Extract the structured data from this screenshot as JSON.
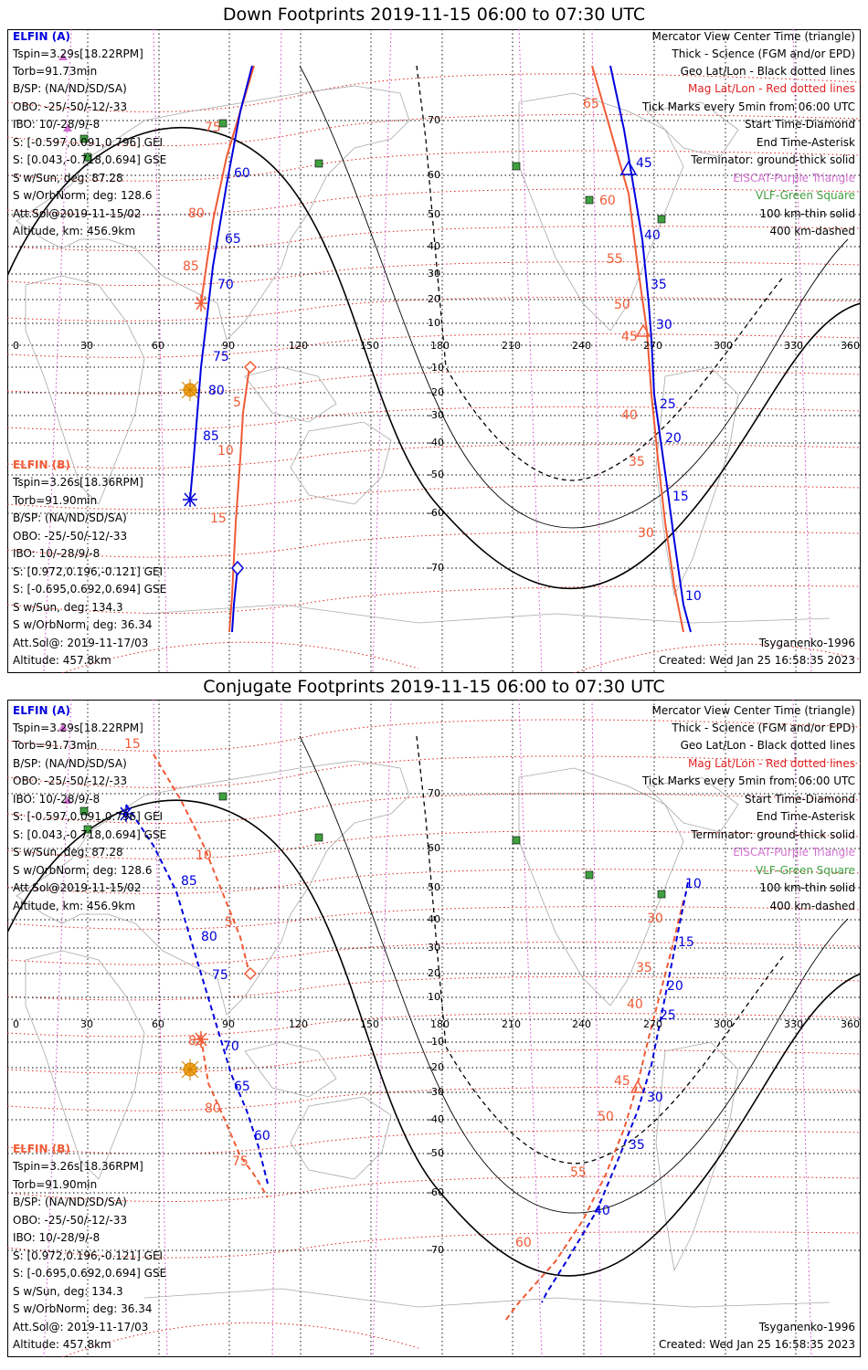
{
  "panels": [
    {
      "title": "Down Footprints 2019-11-15 06:00 to 07:30 UTC",
      "elfin_a": {
        "header": "ELFIN (A)",
        "lines": [
          "Tspin=3.29s[18.22RPM]",
          "Torb=91.73min",
          "B/SP: (NA/ND/SD/SA)",
          "OBO: -25/-50/-12/-33",
          "IBO: 10/-28/9/-8",
          "S: [-0.597,0.091,0.796] GEI",
          "S: [0.043,-0.718,0.694] GSE",
          "S w/Sun, deg: 87.28",
          "S w/OrbNorm, deg: 128.6",
          "Att.Sol@2019-11-15/02",
          "Altitude, km: 456.9km"
        ]
      },
      "elfin_b": {
        "header": "ELFIN (B)",
        "lines": [
          "Tspin=3.26s[18.36RPM]",
          "Torb=91.90min",
          "B/SP: (NA/ND/SD/SA)",
          "OBO: -25/-50/-12/-33",
          "IBO: 10/-28/9/-8",
          "S: [0.972,0.196,-0.121] GEI",
          "S: [-0.695,0.692,0.694] GSE",
          "S w/Sun, deg: 134.3",
          "S w/OrbNorm, deg: 36.34",
          "Att.Sol@: 2019-11-17/03",
          "Altitude: 457.8km"
        ]
      },
      "legend": [
        {
          "text": "Mercator View Center Time (triangle)",
          "color": "#000000"
        },
        {
          "text": "Thick - Science (FGM and/or EPD)",
          "color": "#000000"
        },
        {
          "text": "Geo Lat/Lon - Black dotted lines",
          "color": "#000000"
        },
        {
          "text": "Mag Lat/Lon - Red dotted lines",
          "color": "#e02020"
        },
        {
          "text": "Tick Marks every 5min from 06:00 UTC",
          "color": "#000000"
        },
        {
          "text": "Start Time-Diamond",
          "color": "#000000"
        },
        {
          "text": "End Time-Asterisk",
          "color": "#000000"
        },
        {
          "text": "Terminator: ground-thick solid",
          "color": "#000000"
        },
        {
          "text": "EISCAT-Purple Triangle",
          "color": "#d070d0"
        },
        {
          "text": "VLF-Green Square",
          "color": "#40a040"
        },
        {
          "text": "100 km-thin solid",
          "color": "#000000"
        },
        {
          "text": "400 km-dashed",
          "color": "#000000"
        }
      ],
      "model": "Tsyganenko-1996",
      "created": "Created: Wed Jan 25 16:58:35 2023",
      "tick_labels_a": [
        "60",
        "65",
        "70",
        "75",
        "80",
        "85",
        "45",
        "40",
        "35",
        "30",
        "25",
        "20",
        "15",
        "10"
      ],
      "tick_labels_b": [
        "75",
        "80",
        "85",
        "5",
        "10",
        "15",
        "65",
        "60",
        "55",
        "50",
        "45",
        "40",
        "35",
        "30"
      ]
    },
    {
      "title": "Conjugate Footprints 2019-11-15 06:00 to 07:30 UTC",
      "elfin_a": {
        "header": "ELFIN (A)",
        "lines": [
          "Tspin=3.29s[18.22RPM]",
          "Torb=91.73min",
          "B/SP: (NA/ND/SD/SA)",
          "OBO: -25/-50/-12/-33",
          "IBO: 10/-28/9/-8",
          "S: [-0.597,0.091,0.796] GEI",
          "S: [0.043,-0.718,0.694] GSE",
          "S w/Sun, deg: 87.28",
          "S w/OrbNorm, deg: 128.6",
          "Att.Sol@2019-11-15/02",
          "Altitude, km: 456.9km"
        ]
      },
      "elfin_b": {
        "header": "ELFIN (B)",
        "lines": [
          "Tspin=3.26s[18.36RPM]",
          "Torb=91.90min",
          "B/SP: (NA/ND/SD/SA)",
          "OBO: -25/-50/-12/-33",
          "IBO: 10/-28/9/-8",
          "S: [0.972,0.196,-0.121] GEI",
          "S: [-0.695,0.692,0.694] GSE",
          "S w/Sun, deg: 134.3",
          "S w/OrbNorm, deg: 36.34",
          "Att.Sol@: 2019-11-17/03",
          "Altitude: 457.8km"
        ]
      },
      "legend": [
        {
          "text": "Mercator View Center Time (triangle)",
          "color": "#000000"
        },
        {
          "text": "Thick - Science (FGM and/or EPD)",
          "color": "#000000"
        },
        {
          "text": "Geo Lat/Lon - Black dotted lines",
          "color": "#000000"
        },
        {
          "text": "Mag Lat/Lon - Red dotted lines",
          "color": "#e02020"
        },
        {
          "text": "Tick Marks every 5min from 06:00 UTC",
          "color": "#000000"
        },
        {
          "text": "Start Time-Diamond",
          "color": "#000000"
        },
        {
          "text": "End Time-Asterisk",
          "color": "#000000"
        },
        {
          "text": "Terminator: ground-thick solid",
          "color": "#000000"
        },
        {
          "text": "EISCAT-Purple Triangle",
          "color": "#d070d0"
        },
        {
          "text": "VLF-Green Square",
          "color": "#40a040"
        },
        {
          "text": "100 km-thin solid",
          "color": "#000000"
        },
        {
          "text": "400 km-dashed",
          "color": "#000000"
        }
      ],
      "model": "Tsyganenko-1996",
      "created": "Created: Wed Jan 25 16:58:35 2023",
      "tick_labels_a": [
        "85",
        "80",
        "75",
        "70",
        "65",
        "60",
        "10",
        "15",
        "20",
        "25",
        "30",
        "35",
        "40"
      ],
      "tick_labels_b": [
        "15",
        "10",
        "5",
        "85",
        "80",
        "75",
        "30",
        "35",
        "40",
        "45",
        "50",
        "55",
        "60"
      ]
    }
  ],
  "axes": {
    "lon_labels": [
      "0",
      "30",
      "60",
      "90",
      "120",
      "150",
      "180",
      "210",
      "240",
      "270",
      "300",
      "330",
      "360"
    ],
    "lat_labels": [
      "70",
      "60",
      "50",
      "40",
      "30",
      "20",
      "10",
      "-10",
      "-20",
      "-30",
      "-40",
      "-50",
      "-60",
      "-70"
    ]
  },
  "colors": {
    "elfin_a": "#0000dd",
    "elfin_b": "#f05a35",
    "mag_grid": "#e02020",
    "mag_meridian": "#d040d0",
    "coast": "#a9a9a9",
    "vlf": "#40a040",
    "eiscat": "#d070d0",
    "sun": "#f5a623"
  }
}
